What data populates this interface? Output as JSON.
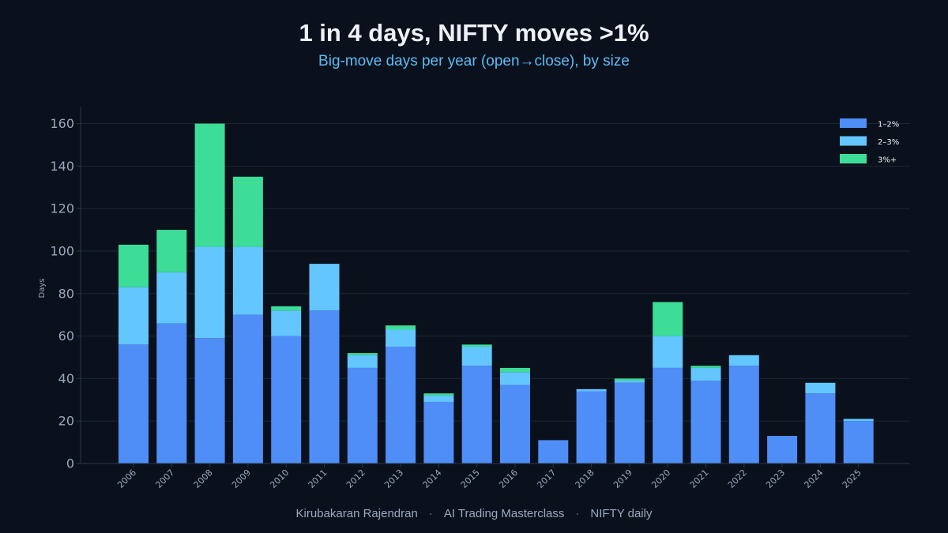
{
  "title": "1 in 4 days, NIFTY moves >1%",
  "subtitle": "Big-move days per year (open→close), by size",
  "footer": {
    "parts": [
      "Kirubakaran Rajendran",
      "AI Trading Masterclass",
      "NIFTY daily"
    ],
    "separator": "·"
  },
  "colors": {
    "background": "#0b111c",
    "grid": "#1b2636",
    "axis": "#2a3646",
    "tick_text": "#9aa8bd",
    "series": [
      "#4f8df7",
      "#63c6ff",
      "#3ddc97"
    ]
  },
  "chart_data": {
    "type": "bar",
    "stacked": true,
    "title": "1 in 4 days, NIFTY moves >1%",
    "subtitle": "Big-move days per year (open→close), by size",
    "xlabel": "",
    "ylabel": "Days",
    "ylim": [
      0,
      168
    ],
    "yticks": [
      0,
      20,
      40,
      60,
      80,
      100,
      120,
      140,
      160
    ],
    "grid": true,
    "legend_position": "top-right",
    "categories": [
      "2006",
      "2007",
      "2008",
      "2009",
      "2010",
      "2011",
      "2012",
      "2013",
      "2014",
      "2015",
      "2016",
      "2017",
      "2018",
      "2019",
      "2020",
      "2021",
      "2022",
      "2023",
      "2024",
      "2025"
    ],
    "series": [
      {
        "name": "1–2%",
        "color": "#4f8df7",
        "values": [
          56,
          66,
          59,
          70,
          60,
          72,
          45,
          55,
          29,
          46,
          37,
          11,
          34,
          38,
          45,
          39,
          46,
          13,
          33,
          20
        ]
      },
      {
        "name": "2–3%",
        "color": "#63c6ff",
        "values": [
          27,
          24,
          43,
          32,
          12,
          22,
          6,
          8,
          3,
          9,
          6,
          0,
          1,
          1,
          15,
          6,
          5,
          0,
          5,
          1
        ]
      },
      {
        "name": "3%+",
        "color": "#3ddc97",
        "values": [
          20,
          20,
          58,
          33,
          2,
          0,
          1,
          2,
          1,
          1,
          2,
          0,
          0,
          1,
          16,
          1,
          0,
          0,
          0,
          0
        ]
      }
    ]
  }
}
